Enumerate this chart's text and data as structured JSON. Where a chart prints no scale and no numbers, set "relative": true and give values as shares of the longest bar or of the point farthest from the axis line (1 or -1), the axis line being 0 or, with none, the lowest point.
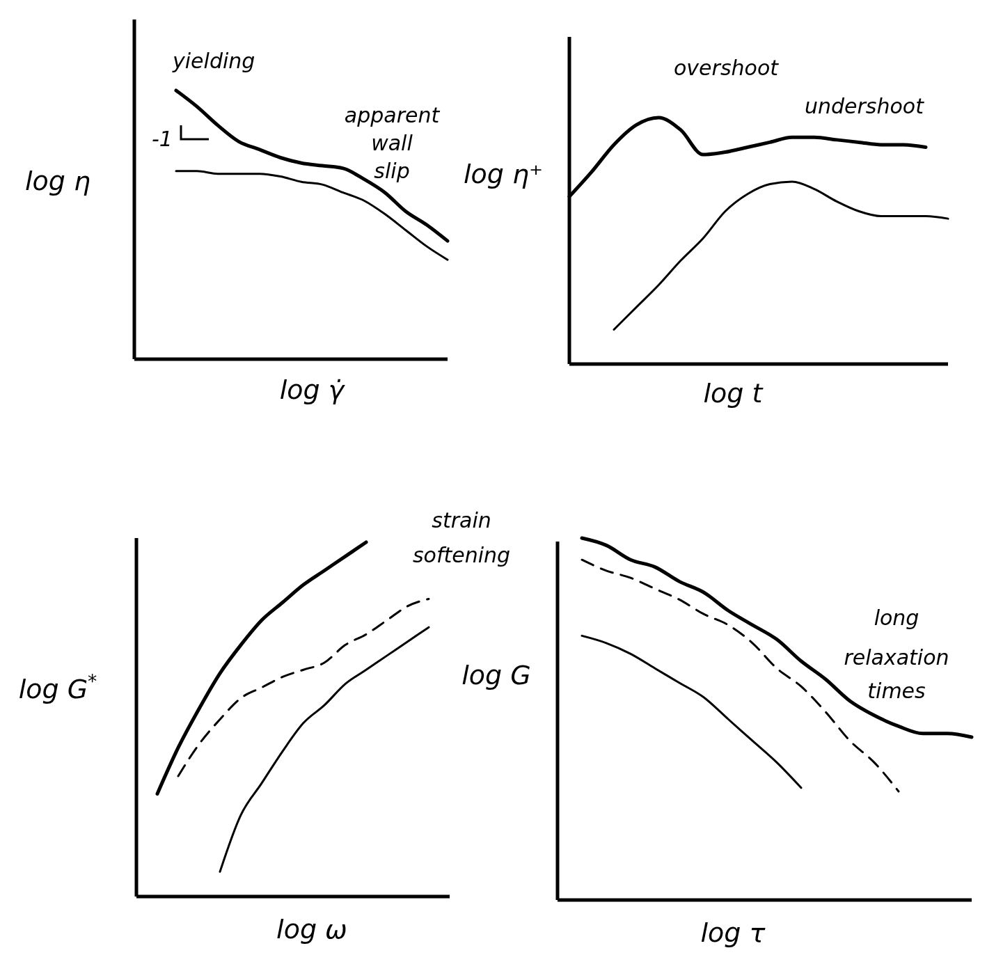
{
  "chart_data": [
    {
      "type": "line",
      "relative": true,
      "xlabel": "log γ̇",
      "ylabel": "log η",
      "annotations": [
        "yielding",
        "-1",
        "apparent wall slip"
      ],
      "categories": [
        null,
        null,
        null,
        null,
        null,
        null,
        null,
        null,
        null,
        null,
        null,
        null,
        null,
        null,
        null,
        null
      ],
      "series": [
        {
          "color": "#000000",
          "line_style": "solid",
          "values": [
            null,
            null,
            1.0,
            0.94,
            0.87,
            0.81,
            0.78,
            0.75,
            0.73,
            0.72,
            0.71,
            0.67,
            0.62,
            0.55,
            0.5,
            0.44
          ]
        },
        {
          "color": "#000000",
          "line_style": "solid",
          "values": [
            null,
            null,
            0.7,
            0.7,
            0.69,
            0.69,
            0.69,
            0.68,
            0.66,
            0.65,
            0.62,
            0.59,
            0.54,
            0.48,
            0.42,
            0.37
          ]
        }
      ]
    },
    {
      "type": "line",
      "relative": true,
      "xlabel": "log t",
      "ylabel": "log η⁺",
      "annotations": [
        "overshoot",
        "undershoot"
      ],
      "categories": [
        null,
        null,
        null,
        null,
        null,
        null,
        null,
        null,
        null,
        null,
        null,
        null,
        null,
        null,
        null,
        null,
        null,
        null
      ],
      "series": [
        {
          "color": "#000000",
          "line_style": "solid",
          "values": [
            0.68,
            0.78,
            0.89,
            0.97,
            1.0,
            0.95,
            0.85,
            0.86,
            0.88,
            0.9,
            0.92,
            0.92,
            0.91,
            0.9,
            0.89,
            0.89,
            0.88,
            null
          ]
        },
        {
          "color": "#000000",
          "line_style": "solid",
          "values": [
            null,
            null,
            0.14,
            0.23,
            0.32,
            0.42,
            0.51,
            0.62,
            0.69,
            0.73,
            0.74,
            0.71,
            0.66,
            0.62,
            0.6,
            0.6,
            0.6,
            0.59
          ]
        }
      ]
    },
    {
      "type": "line",
      "relative": true,
      "xlabel": "log ω",
      "ylabel": "log G$^{*}$",
      "annotations": [
        "strain softening"
      ],
      "categories": [
        null,
        null,
        null,
        null,
        null,
        null,
        null,
        null,
        null,
        null,
        null,
        null,
        null,
        null,
        null,
        null
      ],
      "series": [
        {
          "color": "#000000",
          "line_style": "solid",
          "values": [
            null,
            0.29,
            0.42,
            0.53,
            0.63,
            0.71,
            0.78,
            0.83,
            0.88,
            0.92,
            0.96,
            1.0,
            null,
            null,
            null,
            null
          ]
        },
        {
          "color": "#000000",
          "line_style": "dashed",
          "values": [
            null,
            null,
            0.34,
            0.43,
            0.5,
            0.56,
            0.59,
            0.62,
            0.64,
            0.66,
            0.71,
            0.74,
            0.78,
            0.82,
            0.84,
            null
          ]
        },
        {
          "color": "#000000",
          "line_style": "solid",
          "values": [
            null,
            null,
            null,
            null,
            0.07,
            0.23,
            0.32,
            0.41,
            0.49,
            0.54,
            0.6,
            0.64,
            0.68,
            0.72,
            0.76,
            null
          ]
        }
      ]
    },
    {
      "type": "line",
      "relative": true,
      "xlabel": "log τ",
      "ylabel": "log G",
      "annotations": [
        "long relaxation times"
      ],
      "categories": [
        null,
        null,
        null,
        null,
        null,
        null,
        null,
        null,
        null,
        null,
        null,
        null,
        null,
        null,
        null,
        null,
        null,
        null
      ],
      "series": [
        {
          "color": "#000000",
          "line_style": "solid",
          "values": [
            null,
            1.0,
            0.98,
            0.94,
            0.92,
            0.88,
            0.85,
            0.8,
            0.76,
            0.72,
            0.66,
            0.61,
            0.55,
            0.51,
            0.48,
            0.46,
            0.46,
            0.45
          ]
        },
        {
          "color": "#000000",
          "line_style": "dashed",
          "values": [
            null,
            0.94,
            0.91,
            0.89,
            0.86,
            0.83,
            0.79,
            0.76,
            0.71,
            0.64,
            0.59,
            0.52,
            0.44,
            0.38,
            0.3,
            null,
            null,
            null
          ]
        },
        {
          "color": "#000000",
          "line_style": "solid",
          "values": [
            null,
            0.73,
            0.71,
            0.68,
            0.64,
            0.6,
            0.56,
            0.5,
            0.44,
            0.38,
            0.31,
            null,
            null,
            null,
            null,
            null,
            null,
            null
          ]
        }
      ]
    }
  ]
}
